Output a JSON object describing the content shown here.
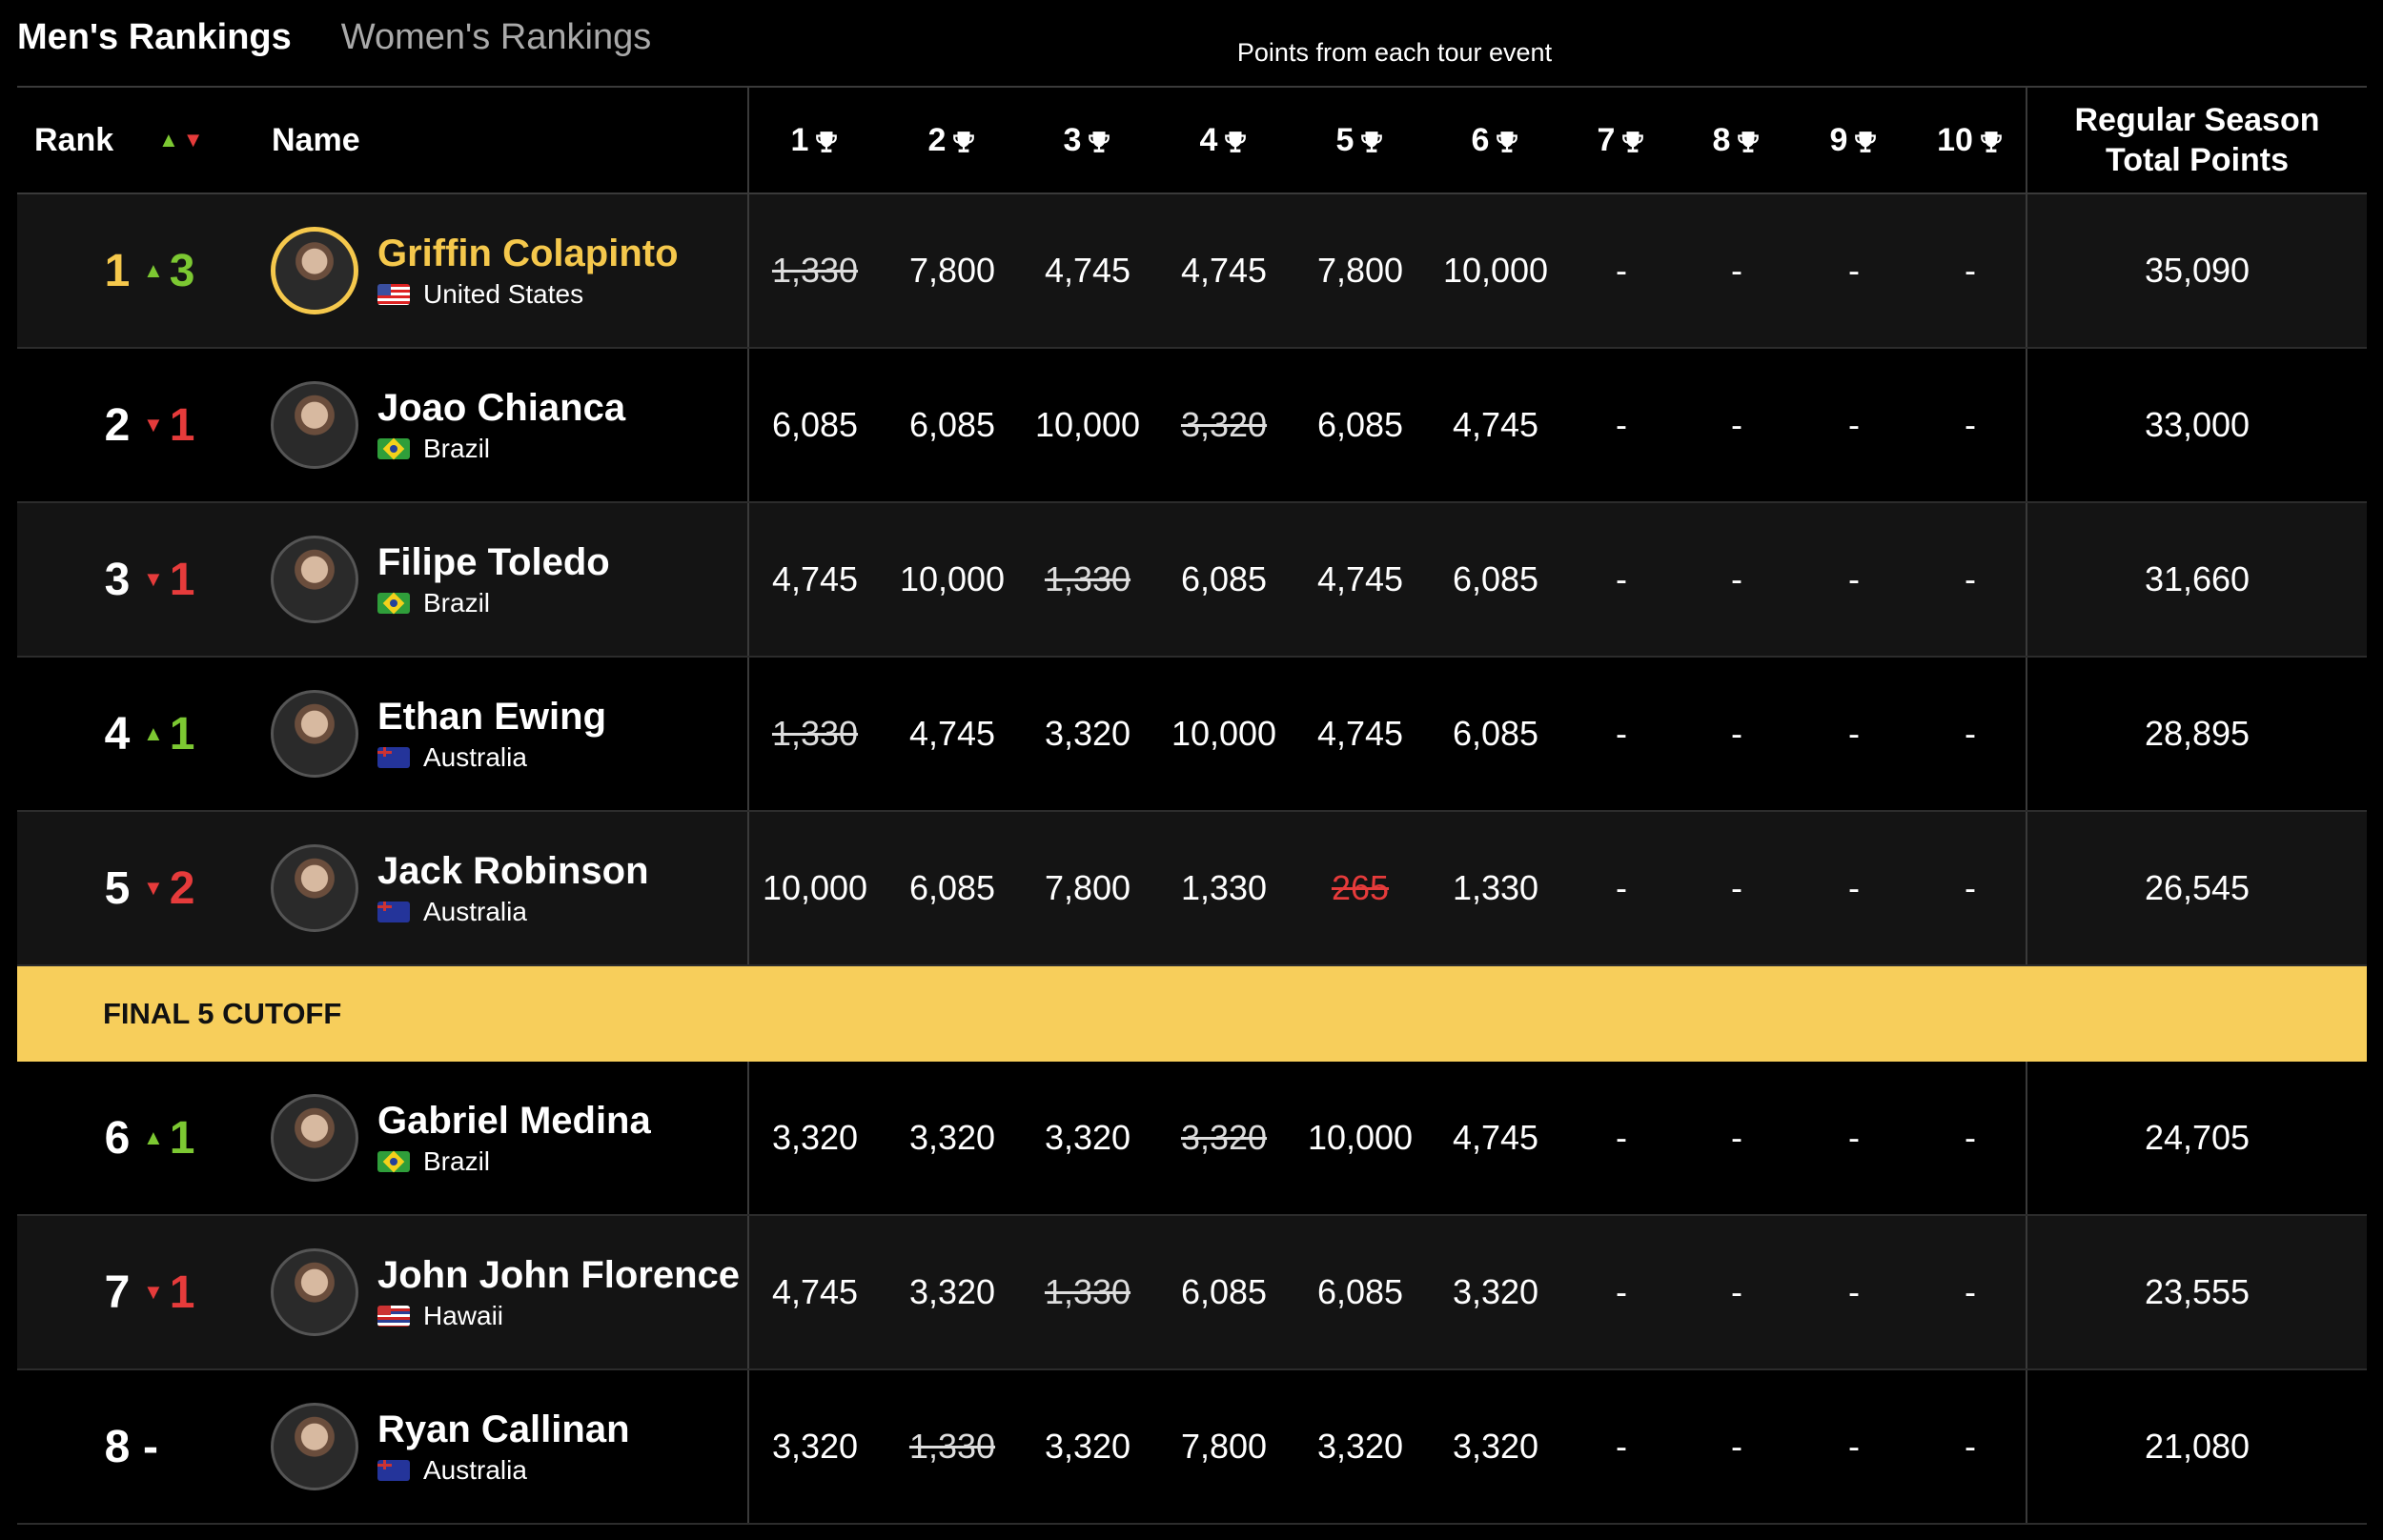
{
  "tabs": [
    {
      "label": "Men's Rankings",
      "active": true
    },
    {
      "label": "Women's Rankings",
      "active": false
    }
  ],
  "subtitle": "Points from each tour event",
  "header": {
    "rank": "Rank",
    "name": "Name",
    "events": [
      "1",
      "2",
      "3",
      "4",
      "5",
      "6",
      "7",
      "8",
      "9",
      "10"
    ],
    "total_line1": "Regular Season",
    "total_line2": "Total Points"
  },
  "cutoff_label": "FINAL 5 CUTOFF",
  "colors": {
    "accent": "#f5c84c",
    "up": "#7cc832",
    "down": "#e63b3b",
    "cutoff": "#f7ce5b"
  },
  "rows": [
    {
      "rank": "1",
      "move": "3",
      "dir": "up",
      "name": "Griffin Colapinto",
      "country": "United States",
      "flag": "us",
      "points": [
        "1,330",
        "7,800",
        "4,745",
        "4,745",
        "7,800",
        "10,000",
        "-",
        "-",
        "-",
        "-"
      ],
      "dropped": [
        0
      ],
      "red": [],
      "total": "35,090"
    },
    {
      "rank": "2",
      "move": "1",
      "dir": "down",
      "name": "Joao Chianca",
      "country": "Brazil",
      "flag": "br",
      "points": [
        "6,085",
        "6,085",
        "10,000",
        "3,320",
        "6,085",
        "4,745",
        "-",
        "-",
        "-",
        "-"
      ],
      "dropped": [
        3
      ],
      "red": [],
      "total": "33,000"
    },
    {
      "rank": "3",
      "move": "1",
      "dir": "down",
      "name": "Filipe Toledo",
      "country": "Brazil",
      "flag": "br",
      "points": [
        "4,745",
        "10,000",
        "1,330",
        "6,085",
        "4,745",
        "6,085",
        "-",
        "-",
        "-",
        "-"
      ],
      "dropped": [
        2
      ],
      "red": [],
      "total": "31,660"
    },
    {
      "rank": "4",
      "move": "1",
      "dir": "up",
      "name": "Ethan Ewing",
      "country": "Australia",
      "flag": "au",
      "points": [
        "1,330",
        "4,745",
        "3,320",
        "10,000",
        "4,745",
        "6,085",
        "-",
        "-",
        "-",
        "-"
      ],
      "dropped": [
        0
      ],
      "red": [],
      "total": "28,895"
    },
    {
      "rank": "5",
      "move": "2",
      "dir": "down",
      "name": "Jack Robinson",
      "country": "Australia",
      "flag": "au",
      "points": [
        "10,000",
        "6,085",
        "7,800",
        "1,330",
        "265",
        "1,330",
        "-",
        "-",
        "-",
        "-"
      ],
      "dropped": [
        4
      ],
      "red": [
        4
      ],
      "total": "26,545"
    },
    {
      "rank": "6",
      "move": "1",
      "dir": "up",
      "name": "Gabriel Medina",
      "country": "Brazil",
      "flag": "br",
      "points": [
        "3,320",
        "3,320",
        "3,320",
        "3,320",
        "10,000",
        "4,745",
        "-",
        "-",
        "-",
        "-"
      ],
      "dropped": [
        3
      ],
      "red": [],
      "total": "24,705"
    },
    {
      "rank": "7",
      "move": "1",
      "dir": "down",
      "name": "John John Florence",
      "country": "Hawaii",
      "flag": "hi",
      "points": [
        "4,745",
        "3,320",
        "1,330",
        "6,085",
        "6,085",
        "3,320",
        "-",
        "-",
        "-",
        "-"
      ],
      "dropped": [
        2
      ],
      "red": [],
      "total": "23,555"
    },
    {
      "rank": "8",
      "move": "-",
      "dir": "none",
      "name": "Ryan Callinan",
      "country": "Australia",
      "flag": "au",
      "points": [
        "3,320",
        "1,330",
        "3,320",
        "7,800",
        "3,320",
        "3,320",
        "-",
        "-",
        "-",
        "-"
      ],
      "dropped": [
        1
      ],
      "red": [],
      "total": "21,080"
    }
  ]
}
